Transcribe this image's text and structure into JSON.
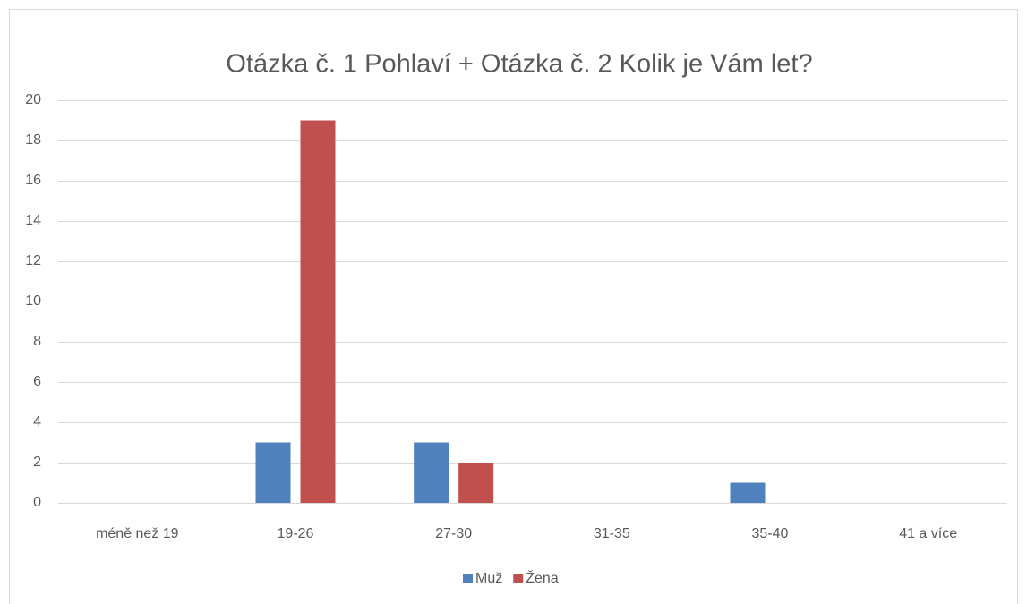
{
  "chart_data": {
    "type": "bar",
    "title": "Otázka č. 1 Pohlaví + Otázka č. 2 Kolik je Vám let?",
    "categories": [
      "méně než 19",
      "19-26",
      "27-30",
      "31-35",
      "35-40",
      "41 a více"
    ],
    "series": [
      {
        "name": "Muž",
        "color": "#4f81bd",
        "values": [
          0,
          3,
          3,
          0,
          1,
          0
        ]
      },
      {
        "name": "Žena",
        "color": "#c0504d",
        "values": [
          0,
          19,
          2,
          0,
          0,
          0
        ]
      }
    ],
    "ylim": [
      0,
      20
    ],
    "yticks": [
      0,
      2,
      4,
      6,
      8,
      10,
      12,
      14,
      16,
      18,
      20
    ],
    "grid": true,
    "legend": "bottom"
  }
}
